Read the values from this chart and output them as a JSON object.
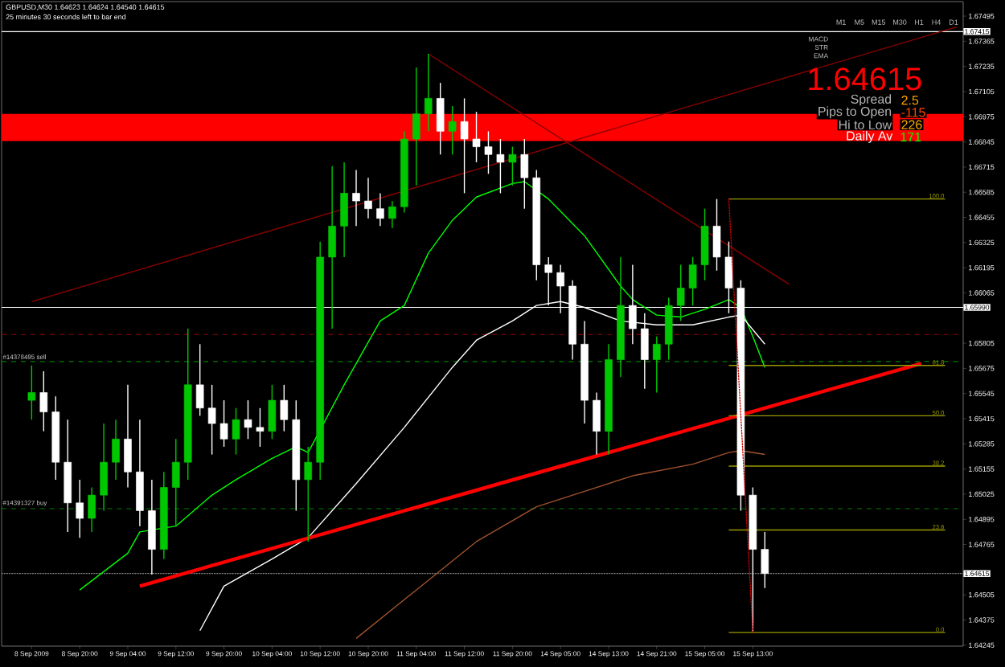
{
  "chart_data": {
    "type": "candlestick",
    "title": "GBPUSD,M30 1.64623 1.64624 1.64540 1.64615",
    "subtitle": "25 minutes 30 seconds left to bar end",
    "categories": [
      "8 Sep 2009",
      null,
      null,
      null,
      "8 Sep 20:00",
      null,
      null,
      null,
      "9 Sep 04:00",
      null,
      null,
      null,
      "9 Sep 12:00",
      null,
      null,
      null,
      "9 Sep 20:00",
      null,
      null,
      null,
      "10 Sep 04:00",
      null,
      null,
      null,
      "10 Sep 12:00",
      null,
      null,
      null,
      "10 Sep 20:00",
      null,
      null,
      null,
      "11 Sep 04:00",
      null,
      null,
      null,
      "11 Sep 12:00",
      null,
      null,
      null,
      "11 Sep 20:00",
      null,
      null,
      null,
      "14 Sep 05:00",
      null,
      null,
      null,
      "14 Sep 13:00",
      null,
      null,
      null,
      "14 Sep 21:00",
      null,
      null,
      null,
      "15 Sep 05:00",
      null,
      null,
      null,
      "15 Sep 13:00",
      null,
      null,
      null,
      null,
      null,
      null,
      null,
      null,
      null,
      null,
      null,
      null,
      null,
      null,
      null,
      null,
      null
    ],
    "ohlc": [
      [
        1.6551,
        1.6569,
        1.6541,
        1.6555
      ],
      [
        1.6555,
        1.6566,
        1.6535,
        1.6545
      ],
      [
        1.6545,
        1.6553,
        1.651,
        1.6519
      ],
      [
        1.6519,
        1.6541,
        1.6483,
        1.6498
      ],
      [
        1.6498,
        1.651,
        1.648,
        1.649
      ],
      [
        1.649,
        1.6506,
        1.6483,
        1.6502
      ],
      [
        1.6502,
        1.6539,
        1.6494,
        1.6519
      ],
      [
        1.6519,
        1.6541,
        1.651,
        1.6531
      ],
      [
        1.6531,
        1.6559,
        1.6506,
        1.6514
      ],
      [
        1.6514,
        1.6541,
        1.6486,
        1.6494
      ],
      [
        1.6494,
        1.651,
        1.6461,
        1.6474
      ],
      [
        1.6474,
        1.6514,
        1.6469,
        1.6506
      ],
      [
        1.6506,
        1.6531,
        1.6486,
        1.6519
      ],
      [
        1.6519,
        1.6588,
        1.651,
        1.6559
      ],
      [
        1.6559,
        1.658,
        1.6543,
        1.6547
      ],
      [
        1.6547,
        1.6559,
        1.6523,
        1.6539
      ],
      [
        1.6539,
        1.6551,
        1.6527,
        1.6531
      ],
      [
        1.6531,
        1.6547,
        1.6523,
        1.6541
      ],
      [
        1.6541,
        1.6551,
        1.6531,
        1.6537
      ],
      [
        1.6537,
        1.6547,
        1.6527,
        1.6535
      ],
      [
        1.6535,
        1.6559,
        1.6531,
        1.6551
      ],
      [
        1.6551,
        1.6559,
        1.6535,
        1.6541
      ],
      [
        1.6541,
        1.6551,
        1.6494,
        1.651
      ],
      [
        1.651,
        1.6527,
        1.6478,
        1.6519
      ],
      [
        1.6519,
        1.6633,
        1.651,
        1.6625
      ],
      [
        1.6625,
        1.6672,
        1.6588,
        1.6641
      ],
      [
        1.6641,
        1.6674,
        1.6625,
        1.6658
      ],
      [
        1.6658,
        1.667,
        1.6641,
        1.6654
      ],
      [
        1.6654,
        1.6666,
        1.6645,
        1.665
      ],
      [
        1.665,
        1.6658,
        1.6641,
        1.6645
      ],
      [
        1.6645,
        1.6654,
        1.664,
        1.6651
      ],
      [
        1.6651,
        1.669,
        1.6648,
        1.6686
      ],
      [
        1.6686,
        1.6723,
        1.6662,
        1.6699
      ],
      [
        1.6699,
        1.673,
        1.669,
        1.6707
      ],
      [
        1.6707,
        1.6715,
        1.6678,
        1.669
      ],
      [
        1.669,
        1.6703,
        1.6678,
        1.6695
      ],
      [
        1.6695,
        1.6707,
        1.6658,
        1.6686
      ],
      [
        1.6686,
        1.67,
        1.6674,
        1.6682
      ],
      [
        1.6682,
        1.669,
        1.6668,
        1.6678
      ],
      [
        1.6678,
        1.6686,
        1.6658,
        1.6674
      ],
      [
        1.6674,
        1.6682,
        1.6662,
        1.6678
      ],
      [
        1.6678,
        1.6686,
        1.665,
        1.6666
      ],
      [
        1.6666,
        1.667,
        1.6613,
        1.6621
      ],
      [
        1.6621,
        1.6625,
        1.66,
        1.6617
      ],
      [
        1.6617,
        1.6621,
        1.6596,
        1.661
      ],
      [
        1.661,
        1.6613,
        1.6572,
        1.658
      ],
      [
        1.658,
        1.6592,
        1.6539,
        1.6551
      ],
      [
        1.6551,
        1.6555,
        1.6523,
        1.6535
      ],
      [
        1.6535,
        1.658,
        1.6523,
        1.6572
      ],
      [
        1.6572,
        1.6625,
        1.6563,
        1.66
      ],
      [
        1.66,
        1.6621,
        1.658,
        1.6588
      ],
      [
        1.6588,
        1.6596,
        1.6557,
        1.6572
      ],
      [
        1.6572,
        1.6584,
        1.6555,
        1.658
      ],
      [
        1.658,
        1.6604,
        1.6572,
        1.66
      ],
      [
        1.66,
        1.6621,
        1.6592,
        1.6609
      ],
      [
        1.6609,
        1.6625,
        1.66,
        1.6621
      ],
      [
        1.6621,
        1.665,
        1.6613,
        1.6641
      ],
      [
        1.6641,
        1.6655,
        1.6618,
        1.6625
      ],
      [
        1.6625,
        1.6633,
        1.6596,
        1.6609
      ],
      [
        1.6609,
        1.6613,
        1.6494,
        1.6502
      ],
      [
        1.6502,
        1.6506,
        1.6431,
        1.6474
      ],
      [
        1.6474,
        1.6483,
        1.6454,
        1.64615
      ],
      null,
      null,
      null,
      null,
      null,
      null,
      null,
      null,
      null,
      null,
      null,
      null,
      null,
      null,
      null,
      null
    ],
    "colors": [
      "#00c800",
      "#ffffff",
      "#ffffff",
      "#ffffff",
      "#ffffff",
      "#00c800",
      "#00c800",
      "#00c800",
      "#ffffff",
      "#ffffff",
      "#ffffff",
      "#00c800",
      "#00c800",
      "#00c800",
      "#ffffff",
      "#ffffff",
      "#ffffff",
      "#00c800",
      "#ffffff",
      "#ffffff",
      "#00c800",
      "#ffffff",
      "#ffffff",
      "#00c800",
      "#00c800",
      "#00c800",
      "#00c800",
      "#ffffff",
      "#ffffff",
      "#ffffff",
      "#00c800",
      "#00c800",
      "#00c800",
      "#00c800",
      "#ffffff",
      "#00c800",
      "#ffffff",
      "#ffffff",
      "#ffffff",
      "#ffffff",
      "#00c800",
      "#ffffff",
      "#ffffff",
      "#ffffff",
      "#ffffff",
      "#ffffff",
      "#ffffff",
      "#ffffff",
      "#00c800",
      "#00c800",
      "#ffffff",
      "#ffffff",
      "#00c800",
      "#00c800",
      "#00c800",
      "#00c800",
      "#00c800",
      "#ffffff",
      "#ffffff",
      "#ffffff",
      "#ffffff",
      "#ffffff",
      null,
      null,
      null,
      null,
      null,
      null,
      null,
      null,
      null,
      null,
      null,
      null,
      null,
      null,
      null,
      null
    ],
    "series": [
      {
        "type": "line",
        "color": "#00ff00",
        "values": [
          null,
          null,
          null,
          null,
          1.6453,
          null,
          null,
          null,
          1.6472,
          1.6483,
          null,
          null,
          1.6486,
          null,
          null,
          1.6502,
          null,
          1.651,
          null,
          null,
          1.6521,
          null,
          1.6527,
          1.6524,
          null,
          null,
          1.6559,
          null,
          null,
          1.6592,
          null,
          1.66,
          null,
          1.6627,
          null,
          1.6644,
          null,
          1.6656,
          null,
          null,
          1.6663,
          1.6664,
          null,
          1.6655,
          null,
          null,
          1.6636,
          null,
          null,
          1.661,
          1.6603,
          null,
          1.6595,
          null,
          1.6594,
          null,
          1.6598,
          null,
          1.6603,
          1.6599,
          1.6584,
          1.6568,
          null,
          null,
          null,
          null,
          null,
          null,
          null,
          null,
          null,
          null,
          null,
          null,
          null,
          null,
          null,
          null
        ]
      },
      {
        "type": "line",
        "color": "#ffffff",
        "values": [
          null,
          null,
          null,
          null,
          null,
          null,
          null,
          null,
          null,
          null,
          null,
          null,
          null,
          null,
          1.6432,
          null,
          1.6455,
          null,
          null,
          null,
          1.6469,
          null,
          null,
          1.648,
          null,
          null,
          null,
          1.6508,
          null,
          null,
          null,
          1.6537,
          null,
          null,
          null,
          1.6568,
          null,
          1.6582,
          null,
          null,
          1.6592,
          null,
          1.66,
          null,
          1.6602,
          null,
          1.6599,
          null,
          null,
          1.6592,
          null,
          null,
          1.659,
          null,
          null,
          1.659,
          null,
          null,
          1.6594,
          1.6595,
          null,
          1.658,
          null,
          null,
          null,
          null,
          null,
          null,
          null,
          null,
          null,
          null,
          null,
          null,
          null,
          null,
          null,
          null
        ]
      },
      {
        "type": "line",
        "color": "#a0522d",
        "values": [
          null,
          null,
          null,
          null,
          null,
          null,
          null,
          null,
          null,
          null,
          null,
          null,
          null,
          null,
          null,
          null,
          null,
          null,
          null,
          null,
          null,
          null,
          null,
          null,
          null,
          null,
          null,
          1.6428,
          null,
          null,
          null,
          null,
          1.6453,
          null,
          null,
          null,
          null,
          1.6478,
          null,
          null,
          null,
          null,
          1.6496,
          null,
          null,
          null,
          1.6504,
          null,
          null,
          null,
          1.6512,
          null,
          null,
          null,
          null,
          1.6518,
          null,
          null,
          1.6524,
          1.6525,
          null,
          1.6523,
          null,
          null,
          null,
          null,
          null,
          null,
          null,
          null,
          null,
          null,
          null,
          null,
          null,
          null,
          null,
          null
        ]
      },
      {
        "type": "line",
        "color": "#ff0000",
        "values": [
          null,
          null,
          null,
          null,
          null,
          null,
          null,
          null,
          null,
          1.6455,
          null,
          null,
          null,
          null,
          null,
          null,
          null,
          null,
          null,
          null,
          null,
          null,
          null,
          null,
          null,
          null,
          null,
          null,
          null,
          null,
          null,
          null,
          null,
          null,
          null,
          null,
          null,
          null,
          null,
          null,
          null,
          null,
          null,
          null,
          null,
          null,
          null,
          null,
          null,
          null,
          null,
          null,
          null,
          null,
          null,
          null,
          null,
          null,
          null,
          null,
          null,
          null,
          null,
          null,
          null,
          null,
          null,
          null,
          null,
          null,
          null,
          null,
          null,
          null,
          1.657,
          null,
          null,
          null
        ]
      },
      {
        "type": "line",
        "color": "#8b0000",
        "values": [
          1.6602,
          null,
          null,
          null,
          null,
          null,
          null,
          null,
          null,
          null,
          null,
          null,
          null,
          null,
          null,
          null,
          null,
          null,
          null,
          null,
          null,
          null,
          null,
          null,
          null,
          null,
          null,
          null,
          null,
          null,
          null,
          null,
          null,
          null,
          null,
          null,
          null,
          null,
          null,
          null,
          null,
          null,
          null,
          null,
          null,
          null,
          null,
          null,
          null,
          null,
          null,
          null,
          null,
          null,
          null,
          null,
          null,
          null,
          null,
          null,
          null,
          null,
          null,
          null,
          null,
          null,
          null,
          null,
          null,
          null,
          null,
          null,
          null,
          null,
          null,
          null,
          null,
          1.6744
        ]
      },
      {
        "type": "line",
        "color": "#8b0000",
        "values": [
          null,
          null,
          null,
          null,
          null,
          null,
          null,
          null,
          null,
          null,
          null,
          null,
          null,
          null,
          null,
          null,
          null,
          null,
          null,
          null,
          null,
          null,
          null,
          null,
          null,
          null,
          null,
          null,
          null,
          null,
          null,
          null,
          null,
          1.673,
          null,
          null,
          null,
          null,
          null,
          null,
          null,
          null,
          null,
          null,
          null,
          null,
          null,
          null,
          null,
          null,
          null,
          null,
          null,
          null,
          null,
          null,
          null,
          null,
          null,
          null,
          null,
          null,
          null,
          1.6611,
          null,
          null,
          null,
          null,
          null,
          null,
          null,
          null,
          null,
          null,
          null,
          null,
          null,
          null
        ]
      },
      {
        "type": "line",
        "color": "#cc0000",
        "line_style": "dotted",
        "values": [
          null,
          null,
          null,
          null,
          null,
          null,
          null,
          null,
          null,
          null,
          null,
          null,
          null,
          null,
          null,
          null,
          null,
          null,
          null,
          null,
          null,
          null,
          null,
          null,
          null,
          null,
          null,
          null,
          null,
          null,
          null,
          null,
          null,
          null,
          null,
          null,
          null,
          null,
          null,
          null,
          null,
          null,
          null,
          null,
          null,
          null,
          null,
          null,
          null,
          null,
          null,
          null,
          null,
          null,
          null,
          null,
          null,
          null,
          1.6655,
          null,
          1.6431,
          null,
          null,
          null,
          null,
          null,
          null,
          null,
          null,
          null,
          null,
          null,
          null,
          null,
          null,
          null,
          null,
          null
        ]
      },
      {
        "type": "line",
        "name": "100.0",
        "color": "#999900",
        "values": [
          null,
          null,
          null,
          null,
          null,
          null,
          null,
          null,
          null,
          null,
          null,
          null,
          null,
          null,
          null,
          null,
          null,
          null,
          null,
          null,
          null,
          null,
          null,
          null,
          null,
          null,
          null,
          null,
          null,
          null,
          null,
          null,
          null,
          null,
          null,
          null,
          null,
          null,
          null,
          null,
          null,
          null,
          null,
          null,
          null,
          null,
          null,
          null,
          null,
          null,
          null,
          null,
          null,
          null,
          null,
          null,
          null,
          null,
          1.6655,
          null,
          null,
          null,
          null,
          null,
          null,
          null,
          null,
          null,
          null,
          null,
          null,
          null,
          null,
          null,
          null,
          null,
          1.6655,
          null
        ]
      },
      {
        "type": "line",
        "name": "61.8",
        "color": "#999900",
        "values": [
          null,
          null,
          null,
          null,
          null,
          null,
          null,
          null,
          null,
          null,
          null,
          null,
          null,
          null,
          null,
          null,
          null,
          null,
          null,
          null,
          null,
          null,
          null,
          null,
          null,
          null,
          null,
          null,
          null,
          null,
          null,
          null,
          null,
          null,
          null,
          null,
          null,
          null,
          null,
          null,
          null,
          null,
          null,
          null,
          null,
          null,
          null,
          null,
          null,
          null,
          null,
          null,
          null,
          null,
          null,
          null,
          null,
          null,
          1.6569,
          null,
          null,
          null,
          null,
          null,
          null,
          null,
          null,
          null,
          null,
          null,
          null,
          null,
          null,
          null,
          null,
          null,
          1.6569,
          null
        ]
      },
      {
        "type": "line",
        "name": "50.0",
        "color": "#999900",
        "values": [
          null,
          null,
          null,
          null,
          null,
          null,
          null,
          null,
          null,
          null,
          null,
          null,
          null,
          null,
          null,
          null,
          null,
          null,
          null,
          null,
          null,
          null,
          null,
          null,
          null,
          null,
          null,
          null,
          null,
          null,
          null,
          null,
          null,
          null,
          null,
          null,
          null,
          null,
          null,
          null,
          null,
          null,
          null,
          null,
          null,
          null,
          null,
          null,
          null,
          null,
          null,
          null,
          null,
          null,
          null,
          null,
          null,
          null,
          1.6543,
          null,
          null,
          null,
          null,
          null,
          null,
          null,
          null,
          null,
          null,
          null,
          null,
          null,
          null,
          null,
          null,
          null,
          1.6543,
          null
        ]
      },
      {
        "type": "line",
        "name": "38.2",
        "color": "#999900",
        "values": [
          null,
          null,
          null,
          null,
          null,
          null,
          null,
          null,
          null,
          null,
          null,
          null,
          null,
          null,
          null,
          null,
          null,
          null,
          null,
          null,
          null,
          null,
          null,
          null,
          null,
          null,
          null,
          null,
          null,
          null,
          null,
          null,
          null,
          null,
          null,
          null,
          null,
          null,
          null,
          null,
          null,
          null,
          null,
          null,
          null,
          null,
          null,
          null,
          null,
          null,
          null,
          null,
          null,
          null,
          null,
          null,
          null,
          null,
          1.6517,
          null,
          null,
          null,
          null,
          null,
          null,
          null,
          null,
          null,
          null,
          null,
          null,
          null,
          null,
          null,
          null,
          null,
          1.6517,
          null
        ]
      },
      {
        "type": "line",
        "name": "23.6",
        "color": "#999900",
        "values": [
          null,
          null,
          null,
          null,
          null,
          null,
          null,
          null,
          null,
          null,
          null,
          null,
          null,
          null,
          null,
          null,
          null,
          null,
          null,
          null,
          null,
          null,
          null,
          null,
          null,
          null,
          null,
          null,
          null,
          null,
          null,
          null,
          null,
          null,
          null,
          null,
          null,
          null,
          null,
          null,
          null,
          null,
          null,
          null,
          null,
          null,
          null,
          null,
          null,
          null,
          null,
          null,
          null,
          null,
          null,
          null,
          null,
          null,
          1.6484,
          null,
          null,
          null,
          null,
          null,
          null,
          null,
          null,
          null,
          null,
          null,
          null,
          null,
          null,
          null,
          null,
          null,
          1.6484,
          null
        ]
      },
      {
        "type": "line",
        "name": "0.0",
        "color": "#999900",
        "values": [
          null,
          null,
          null,
          null,
          null,
          null,
          null,
          null,
          null,
          null,
          null,
          null,
          null,
          null,
          null,
          null,
          null,
          null,
          null,
          null,
          null,
          null,
          null,
          null,
          null,
          null,
          null,
          null,
          null,
          null,
          null,
          null,
          null,
          null,
          null,
          null,
          null,
          null,
          null,
          null,
          null,
          null,
          null,
          null,
          null,
          null,
          null,
          null,
          null,
          null,
          null,
          null,
          null,
          null,
          null,
          null,
          null,
          null,
          1.6431,
          null,
          null,
          null,
          null,
          null,
          null,
          null,
          null,
          null,
          null,
          null,
          null,
          null,
          null,
          null,
          null,
          null,
          1.6431,
          null
        ]
      }
    ],
    "ref_lines": [
      {
        "axis": "y",
        "value": 1.67415,
        "label": "1.67415",
        "color": "#ffffff"
      },
      {
        "axis": "y",
        "value": 1.6599,
        "label": "1.65990",
        "color": "#ffffff"
      },
      {
        "axis": "y",
        "value": 1.6585,
        "color": "#990000",
        "line_style": "dashed"
      },
      {
        "axis": "y",
        "value": 1.6571,
        "label": "#14378495 sell",
        "color": "#008000",
        "line_style": "dashed"
      },
      {
        "axis": "y",
        "value": 1.6495,
        "label": "#14391327 buy",
        "color": "#008000",
        "line_style": "dashed"
      },
      {
        "axis": "y",
        "value": 1.64615,
        "label": "1.64615",
        "color": "#808080",
        "line_style": "dotted"
      }
    ],
    "bands": [
      {
        "axis": "y",
        "from": 1.6685,
        "to": 1.6699,
        "color": "#ff0000"
      }
    ],
    "annotations": [
      "1.64615",
      "Spread",
      "2.5",
      "Pips to Open",
      "-115",
      "Hi to Low",
      "226",
      "Daily Av",
      "171",
      "M1",
      "M5",
      "M15",
      "M30",
      "H1",
      "H4",
      "D1",
      "MACD",
      "STR",
      "EMA"
    ],
    "ylim": [
      1.6424,
      1.6757
    ],
    "yticks": [
      1.64245,
      1.64375,
      1.64505,
      1.64765,
      1.64895,
      1.65025,
      1.65155,
      1.65285,
      1.65415,
      1.65545,
      1.65675,
      1.65805,
      1.66065,
      1.66195,
      1.66325,
      1.66455,
      1.66585,
      1.66715,
      1.66845,
      1.66975,
      1.67105,
      1.67235,
      1.67365,
      1.67495
    ]
  }
}
